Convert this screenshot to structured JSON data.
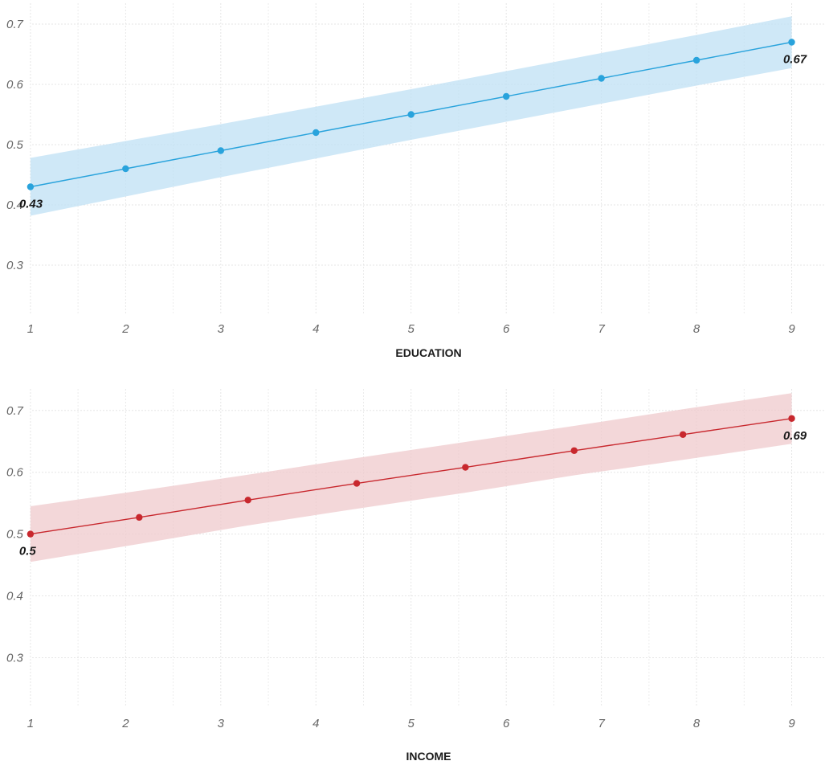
{
  "chart_data": [
    {
      "type": "line",
      "xlabel": "EDUCATION",
      "ylabel": "",
      "x": [
        1,
        2,
        3,
        4,
        5,
        6,
        7,
        8,
        9
      ],
      "x_ticks": [
        "1",
        "2",
        "3",
        "4",
        "5",
        "6",
        "7",
        "8",
        "9"
      ],
      "y_ticks": [
        "0.3",
        "0.4",
        "0.5",
        "0.6",
        "0.7"
      ],
      "y_tick_values": [
        0.3,
        0.4,
        0.5,
        0.6,
        0.7
      ],
      "ylim": [
        0.22,
        0.74
      ],
      "xlim": [
        0.68,
        9.35
      ],
      "grid": true,
      "color": "#29a3dc",
      "band_color": "#bfe0f4",
      "series": [
        {
          "values": [
            0.43,
            0.46,
            0.49,
            0.52,
            0.55,
            0.58,
            0.61,
            0.64,
            0.67
          ],
          "upper": [
            0.478,
            0.506,
            0.534,
            0.563,
            0.592,
            0.622,
            0.652,
            0.682,
            0.713
          ],
          "lower": [
            0.382,
            0.414,
            0.446,
            0.477,
            0.508,
            0.538,
            0.568,
            0.598,
            0.627
          ]
        }
      ],
      "annotations": [
        {
          "text": "0.43",
          "x": 1,
          "y": 0.43,
          "anchor": "below"
        },
        {
          "text": "0.67",
          "x": 9,
          "y": 0.67,
          "anchor": "below"
        }
      ]
    },
    {
      "type": "line",
      "xlabel": "INCOME",
      "ylabel": "",
      "x": [
        1,
        2.143,
        3.286,
        4.429,
        5.571,
        6.714,
        7.857,
        9
      ],
      "x_ticks": [
        "1",
        "2",
        "3",
        "4",
        "5",
        "6",
        "7",
        "8",
        "9"
      ],
      "x_tick_values": [
        1,
        2,
        3,
        4,
        5,
        6,
        7,
        8,
        9
      ],
      "y_ticks": [
        "0.3",
        "0.4",
        "0.5",
        "0.6",
        "0.7"
      ],
      "y_tick_values": [
        0.3,
        0.4,
        0.5,
        0.6,
        0.7
      ],
      "ylim": [
        0.22,
        0.74
      ],
      "xlim": [
        0.68,
        9.35
      ],
      "grid": true,
      "color": "#c8282e",
      "band_color": "#efc9cc",
      "series": [
        {
          "values": [
            0.5,
            0.527,
            0.555,
            0.582,
            0.608,
            0.635,
            0.661,
            0.687
          ],
          "upper": [
            0.545,
            0.57,
            0.596,
            0.623,
            0.649,
            0.675,
            0.702,
            0.728
          ],
          "lower": [
            0.455,
            0.484,
            0.514,
            0.541,
            0.567,
            0.595,
            0.62,
            0.646
          ]
        }
      ],
      "annotations": [
        {
          "text": "0.5",
          "x": 1,
          "y": 0.5,
          "anchor": "below"
        },
        {
          "text": "0.69",
          "x": 9,
          "y": 0.687,
          "anchor": "below"
        }
      ]
    }
  ]
}
